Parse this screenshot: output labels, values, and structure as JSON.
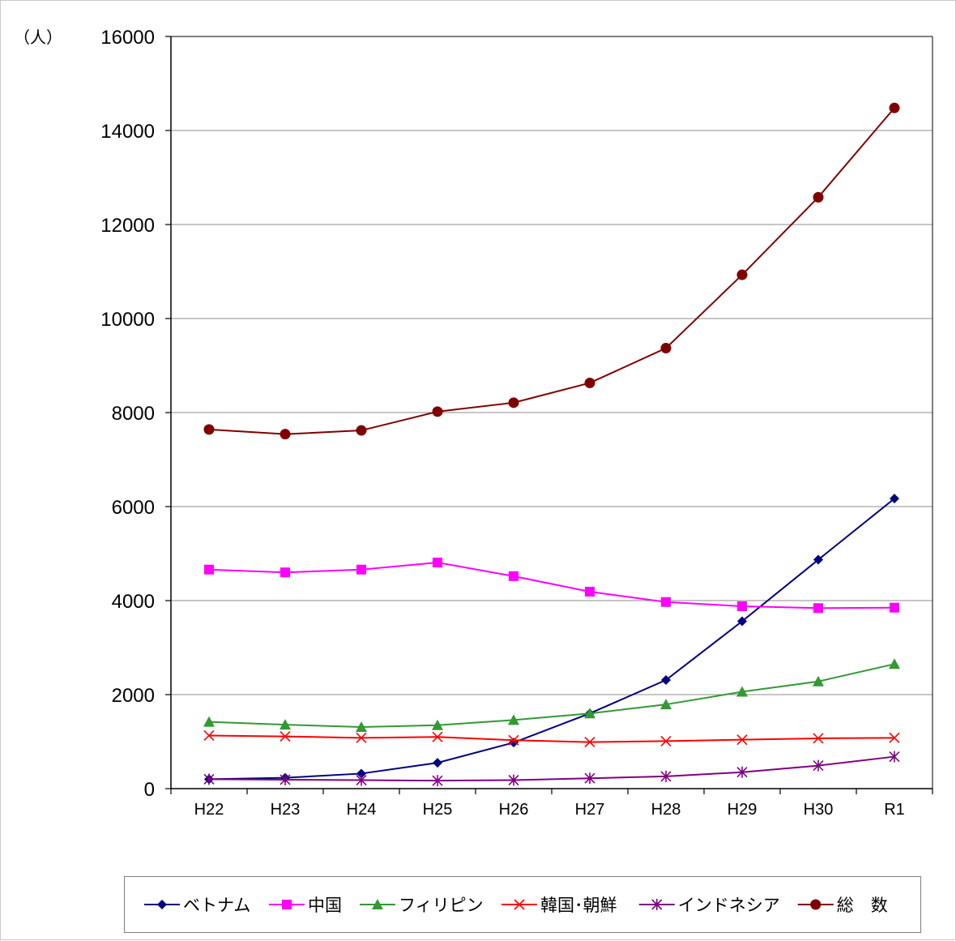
{
  "chart_data": {
    "type": "line",
    "unit_label": "（人）",
    "categories": [
      "H22",
      "H23",
      "H24",
      "H25",
      "H26",
      "H27",
      "H28",
      "H29",
      "H30",
      "R1"
    ],
    "ylim": [
      0,
      16000
    ],
    "yticks": [
      0,
      2000,
      4000,
      6000,
      8000,
      10000,
      12000,
      14000,
      16000
    ],
    "grid": true,
    "legend_position": "bottom",
    "series": [
      {
        "name": "ベトナム",
        "color": "#000080",
        "marker": "diamond",
        "values": [
          200,
          230,
          320,
          550,
          980,
          1600,
          2310,
          3560,
          4870,
          6170
        ]
      },
      {
        "name": "中国",
        "color": "#ff00ff",
        "marker": "square",
        "values": [
          4660,
          4600,
          4660,
          4810,
          4520,
          4190,
          3970,
          3880,
          3840,
          3850
        ]
      },
      {
        "name": "フィリピン",
        "color": "#339933",
        "marker": "triangle",
        "values": [
          1420,
          1360,
          1310,
          1350,
          1460,
          1600,
          1790,
          2060,
          2280,
          2650
        ]
      },
      {
        "name": "韓国･朝鮮",
        "color": "#ff0000",
        "marker": "x",
        "values": [
          1130,
          1110,
          1080,
          1100,
          1030,
          990,
          1010,
          1040,
          1070,
          1080
        ]
      },
      {
        "name": "インドネシア",
        "color": "#800080",
        "marker": "asterisk",
        "values": [
          200,
          190,
          180,
          170,
          180,
          220,
          260,
          350,
          490,
          680
        ]
      },
      {
        "name": "総　数",
        "color": "#800000",
        "marker": "circle",
        "values": [
          7640,
          7540,
          7620,
          8020,
          8210,
          8630,
          9370,
          10930,
          12580,
          14480
        ]
      }
    ]
  }
}
